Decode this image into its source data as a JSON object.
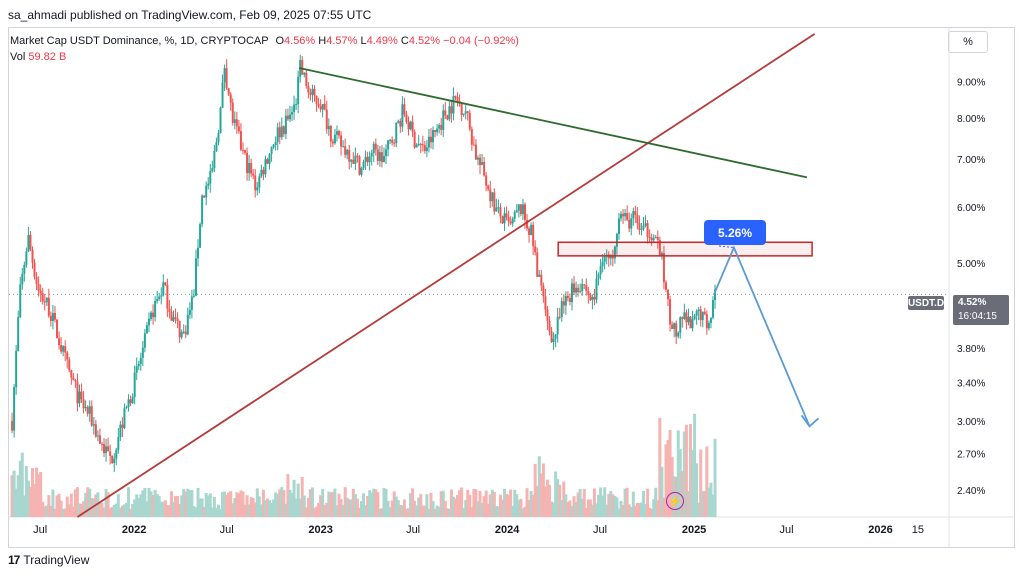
{
  "publisher_line": "sa_ahmadi published on TradingView.com, Feb 09, 2025 07:55 UTC",
  "legend": {
    "symbol": "Market Cap USDT Dominance, %, 1D, CRYPTOCAP",
    "o_label": "O",
    "o": "4.56%",
    "h_label": "H",
    "h": "4.57%",
    "l_label": "L",
    "l": "4.49%",
    "c_label": "C",
    "c": "4.52%",
    "change": "−0.04 (−0.92%)",
    "vol_label": "Vol",
    "vol": "59.82 B"
  },
  "scale_mode": "%",
  "current": {
    "symbol": "USDT.D",
    "price": "4.52%",
    "countdown": "16:04:15"
  },
  "annotation": {
    "label": "5.26%"
  },
  "footer": {
    "brand": "TradingView"
  },
  "colors": {
    "up": "#26a69a",
    "down": "#ef5350",
    "trend_red": "#b53a3a",
    "trend_green": "#2e6b2e",
    "projection": "#5b9bd5",
    "zone": "#c62828"
  },
  "chart_data": {
    "type": "candlestick",
    "y_scale": "log",
    "y_ticks": [
      "9.00%",
      "8.00%",
      "7.00%",
      "6.00%",
      "5.00%",
      "3.80%",
      "3.40%",
      "3.00%",
      "2.70%",
      "2.40%"
    ],
    "y_tick_values": [
      9.0,
      8.0,
      7.0,
      6.0,
      5.0,
      3.8,
      3.4,
      3.0,
      2.7,
      2.4
    ],
    "x_ticks": [
      "Jul",
      "2022",
      "Jul",
      "2023",
      "Jul",
      "2024",
      "Jul",
      "2025",
      "Jul",
      "2026",
      "15"
    ],
    "x_tick_dates": [
      "2021-07-01",
      "2022-01-01",
      "2022-07-01",
      "2023-01-01",
      "2023-07-01",
      "2024-01-01",
      "2024-07-01",
      "2025-01-01",
      "2025-07-01",
      "2026-01-01",
      "2026-03-15"
    ],
    "x_range": [
      "2021-05-01",
      "2026-05-15"
    ],
    "y_range": [
      2.2,
      10.7
    ],
    "price_path": [
      [
        "2021-05-05",
        3.0
      ],
      [
        "2021-05-20",
        4.5
      ],
      [
        "2021-06-05",
        5.45
      ],
      [
        "2021-06-25",
        4.6
      ],
      [
        "2021-07-15",
        4.35
      ],
      [
        "2021-08-05",
        3.9
      ],
      [
        "2021-08-25",
        3.5
      ],
      [
        "2021-09-15",
        3.2
      ],
      [
        "2021-10-05",
        3.05
      ],
      [
        "2021-10-25",
        2.8
      ],
      [
        "2021-11-15",
        2.65
      ],
      [
        "2021-12-05",
        2.95
      ],
      [
        "2021-12-25",
        3.3
      ],
      [
        "2022-01-15",
        3.75
      ],
      [
        "2022-02-05",
        4.3
      ],
      [
        "2022-02-25",
        4.65
      ],
      [
        "2022-03-15",
        4.2
      ],
      [
        "2022-04-05",
        3.95
      ],
      [
        "2022-04-25",
        4.5
      ],
      [
        "2022-05-12",
        6.2
      ],
      [
        "2022-05-30",
        6.6
      ],
      [
        "2022-06-18",
        8.3
      ],
      [
        "2022-06-25",
        9.5
      ],
      [
        "2022-07-10",
        8.0
      ],
      [
        "2022-08-01",
        7.1
      ],
      [
        "2022-08-25",
        6.4
      ],
      [
        "2022-09-15",
        7.0
      ],
      [
        "2022-10-05",
        7.6
      ],
      [
        "2022-10-25",
        7.9
      ],
      [
        "2022-11-10",
        8.3
      ],
      [
        "2022-11-20",
        9.4
      ],
      [
        "2022-12-10",
        8.6
      ],
      [
        "2022-12-30",
        8.4
      ],
      [
        "2023-01-20",
        7.6
      ],
      [
        "2023-02-10",
        7.3
      ],
      [
        "2023-03-01",
        7.1
      ],
      [
        "2023-03-20",
        6.8
      ],
      [
        "2023-04-10",
        7.2
      ],
      [
        "2023-05-01",
        7.0
      ],
      [
        "2023-05-20",
        7.5
      ],
      [
        "2023-06-10",
        8.2
      ],
      [
        "2023-06-30",
        7.5
      ],
      [
        "2023-07-20",
        7.2
      ],
      [
        "2023-08-10",
        7.6
      ],
      [
        "2023-08-30",
        8.1
      ],
      [
        "2023-09-20",
        8.5
      ],
      [
        "2023-10-10",
        8.2
      ],
      [
        "2023-10-30",
        7.1
      ],
      [
        "2023-11-20",
        6.5
      ],
      [
        "2023-12-10",
        5.9
      ],
      [
        "2024-01-05",
        5.6
      ],
      [
        "2024-01-25",
        6.0
      ],
      [
        "2024-02-15",
        5.5
      ],
      [
        "2024-03-01",
        4.8
      ],
      [
        "2024-03-15",
        4.2
      ],
      [
        "2024-03-30",
        3.9
      ],
      [
        "2024-04-15",
        4.3
      ],
      [
        "2024-05-05",
        4.6
      ],
      [
        "2024-05-25",
        4.7
      ],
      [
        "2024-06-15",
        4.4
      ],
      [
        "2024-07-05",
        5.2
      ],
      [
        "2024-07-20",
        5.0
      ],
      [
        "2024-08-05",
        5.9
      ],
      [
        "2024-08-20",
        5.7
      ],
      [
        "2024-09-05",
        5.8
      ],
      [
        "2024-09-20",
        5.5
      ],
      [
        "2024-10-05",
        5.6
      ],
      [
        "2024-10-25",
        5.2
      ],
      [
        "2024-11-10",
        4.3
      ],
      [
        "2024-11-25",
        3.95
      ],
      [
        "2024-12-10",
        4.2
      ],
      [
        "2024-12-25",
        4.05
      ],
      [
        "2025-01-10",
        4.3
      ],
      [
        "2025-01-25",
        4.1
      ],
      [
        "2025-02-09",
        4.52
      ]
    ],
    "trendlines": [
      {
        "color": "red",
        "from": [
          "2021-09-12",
          2.2
        ],
        "to": [
          "2025-08-25",
          10.5
        ]
      },
      {
        "color": "green",
        "from": [
          "2022-11-20",
          9.4
        ],
        "to": [
          "2025-08-10",
          6.6
        ]
      }
    ],
    "zone": {
      "from": "2024-04-10",
      "to": "2025-08-20",
      "low": 5.12,
      "high": 5.35
    },
    "projection": [
      [
        "2025-02-09",
        4.52
      ],
      [
        "2025-03-20",
        5.26
      ],
      [
        "2025-08-15",
        2.95
      ]
    ]
  }
}
